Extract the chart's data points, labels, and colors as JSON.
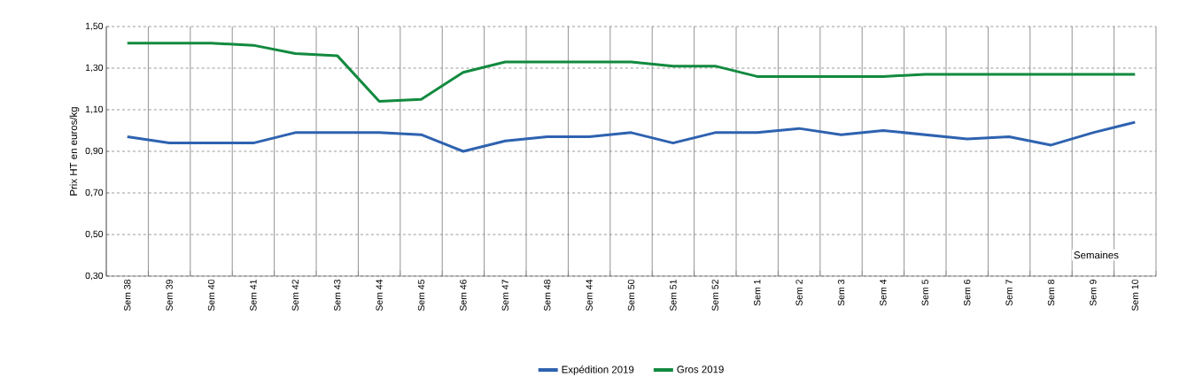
{
  "chart_data": {
    "type": "line",
    "ylabel": "Prix HT en euros/kg",
    "xlabel": "Semaines",
    "categories": [
      "Sem 38",
      "Sem 39",
      "Sem 40",
      "Sem 41",
      "Sem 42",
      "Sem 43",
      "Sem 44",
      "Sem 45",
      "Sem 46",
      "Sem 47",
      "Sem 48",
      "Sem 44",
      "Sem 50",
      "Sem 51",
      "Sem 52",
      "Sem 1",
      "Sem 2",
      "Sem 3",
      "Sem 4",
      "Sem 5",
      "Sem 6",
      "Sem 7",
      "Sem 8",
      "Sem 9",
      "Sem 10"
    ],
    "series": [
      {
        "name": "Expédition 2019",
        "color": "#2e62b0",
        "values": [
          0.97,
          0.94,
          0.94,
          0.94,
          0.99,
          0.99,
          0.99,
          0.98,
          0.9,
          0.95,
          0.97,
          0.97,
          0.99,
          0.94,
          0.99,
          0.99,
          1.01,
          0.98,
          1.0,
          0.98,
          0.96,
          0.97,
          0.93,
          0.99,
          1.04
        ]
      },
      {
        "name": "Gros 2019",
        "color": "#128a3f",
        "values": [
          1.42,
          1.42,
          1.42,
          1.41,
          1.37,
          1.36,
          1.14,
          1.15,
          1.28,
          1.33,
          1.33,
          1.33,
          1.33,
          1.31,
          1.31,
          1.26,
          1.26,
          1.26,
          1.26,
          1.27,
          1.27,
          1.27,
          1.27,
          1.27,
          1.27
        ]
      }
    ],
    "ylim": [
      0.3,
      1.5
    ],
    "yticks": [
      {
        "value": 0.3,
        "label": "0,30"
      },
      {
        "value": 0.5,
        "label": "0,50"
      },
      {
        "value": 0.7,
        "label": "0,70"
      },
      {
        "value": 0.9,
        "label": "0,90"
      },
      {
        "value": 1.1,
        "label": "1,10"
      },
      {
        "value": 1.3,
        "label": "1,30"
      },
      {
        "value": 1.5,
        "label": "1,50"
      }
    ],
    "grid": true,
    "legend": "bottom",
    "marker": "none",
    "line_style": "solid"
  }
}
